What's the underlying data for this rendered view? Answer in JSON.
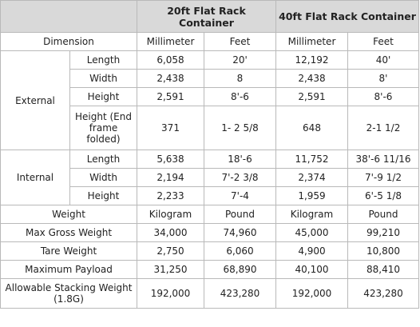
{
  "header": {
    "blank": "",
    "c20": "20ft Flat Rack Container",
    "c40": "40ft Flat Rack Container"
  },
  "dimension_row": {
    "label": "Dimension",
    "u1": "Millimeter",
    "u2": "Feet",
    "u3": "Millimeter",
    "u4": "Feet"
  },
  "external": {
    "group": "External",
    "rows": [
      {
        "label": "Length",
        "v20mm": "6,058",
        "v20ft": "20'",
        "v40mm": "12,192",
        "v40ft": "40'"
      },
      {
        "label": "Width",
        "v20mm": "2,438",
        "v20ft": "8",
        "v40mm": "2,438",
        "v40ft": "8'"
      },
      {
        "label": "Height",
        "v20mm": "2,591",
        "v20ft": "8'-6",
        "v40mm": "2,591",
        "v40ft": "8'-6"
      },
      {
        "label": "Height (End frame folded)",
        "v20mm": "371",
        "v20ft": "1- 2 5/8",
        "v40mm": "648",
        "v40ft": "2-1 1/2"
      }
    ]
  },
  "internal": {
    "group": "Internal",
    "rows": [
      {
        "label": "Length",
        "v20mm": "5,638",
        "v20ft": "18'-6",
        "v40mm": "11,752",
        "v40ft": "38'-6 11/16"
      },
      {
        "label": "Width",
        "v20mm": "2,194",
        "v20ft": "7'-2 3/8",
        "v40mm": "2,374",
        "v40ft": "7'-9 1/2"
      },
      {
        "label": "Height",
        "v20mm": "2,233",
        "v20ft": "7'-4",
        "v40mm": "1,959",
        "v40ft": "6'-5 1/8"
      }
    ]
  },
  "weight_row": {
    "label": "Weight",
    "u1": "Kilogram",
    "u2": "Pound",
    "u3": "Kilogram",
    "u4": "Pound"
  },
  "weights": [
    {
      "label": "Max Gross Weight",
      "v20kg": "34,000",
      "v20lb": "74,960",
      "v40kg": "45,000",
      "v40lb": "99,210"
    },
    {
      "label": "Tare Weight",
      "v20kg": "2,750",
      "v20lb": "6,060",
      "v40kg": "4,900",
      "v40lb": "10,800"
    },
    {
      "label": "Maximum Payload",
      "v20kg": "31,250",
      "v20lb": "68,890",
      "v40kg": "40,100",
      "v40lb": "88,410"
    },
    {
      "label": "Allowable Stacking Weight (1.8G)",
      "v20kg": "192,000",
      "v20lb": "423,280",
      "v40kg": "192,000",
      "v40lb": "423,280"
    }
  ]
}
